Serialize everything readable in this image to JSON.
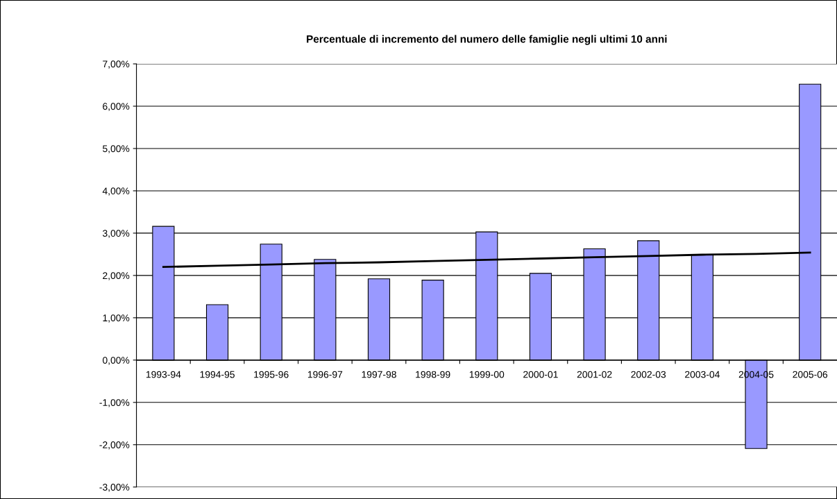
{
  "chart_data": {
    "type": "bar",
    "title": "Percentuale di incremento del numero delle famiglie negli ultimi 10 anni",
    "categories": [
      "1993-94",
      "1994-95",
      "1995-96",
      "1996-97",
      "1997-98",
      "1998-99",
      "1999-00",
      "2000-01",
      "2001-02",
      "2002-03",
      "2003-04",
      "2004-05",
      "2005-06"
    ],
    "series": [
      {
        "color": "#9999ff",
        "values": [
          3.16,
          1.31,
          2.74,
          2.38,
          1.92,
          1.89,
          3.03,
          2.05,
          2.63,
          2.82,
          2.49,
          -2.09,
          6.52
        ]
      },
      {
        "type": "line",
        "color": "#000000",
        "values": [
          2.2,
          2.23,
          2.26,
          2.29,
          2.31,
          2.34,
          2.37,
          2.4,
          2.43,
          2.46,
          2.49,
          2.51,
          2.54
        ]
      }
    ],
    "ylim": [
      -3,
      7
    ],
    "yticks": [
      {
        "value": -3,
        "label": "-3,00%"
      },
      {
        "value": -2,
        "label": "-2,00%"
      },
      {
        "value": -1,
        "label": "-1,00%"
      },
      {
        "value": 0,
        "label": "0,00%"
      },
      {
        "value": 1,
        "label": "1,00%"
      },
      {
        "value": 2,
        "label": "2,00%"
      },
      {
        "value": 3,
        "label": "3,00%"
      },
      {
        "value": 4,
        "label": "4,00%"
      },
      {
        "value": 5,
        "label": "5,00%"
      },
      {
        "value": 6,
        "label": "6,00%"
      },
      {
        "value": 7,
        "label": "7,00%"
      }
    ],
    "grid": "y"
  }
}
